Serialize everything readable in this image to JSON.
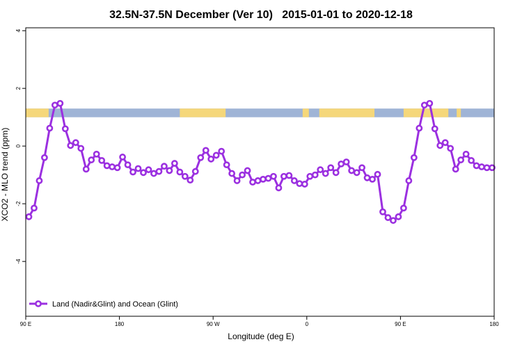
{
  "chart_data": {
    "type": "line",
    "title": "32.5N-37.5N December (Ver 10)   2015-01-01 to 2020-12-18",
    "xlabel": "Longitude (deg E)",
    "ylabel": "XCO2 - MLO trend (ppm)",
    "xlim": [
      90,
      540
    ],
    "ylim": [
      -5.9,
      4.1
    ],
    "x_ticks": [
      {
        "value": 90,
        "label": "90 E"
      },
      {
        "value": 180,
        "label": "180"
      },
      {
        "value": 270,
        "label": "90 W"
      },
      {
        "value": 360,
        "label": "0"
      },
      {
        "value": 450,
        "label": "90 E"
      },
      {
        "value": 540,
        "label": "180"
      }
    ],
    "y_ticks": [
      {
        "value": 4,
        "label": "4"
      },
      {
        "value": 2,
        "label": "2"
      },
      {
        "value": 0,
        "label": "0"
      },
      {
        "value": -2,
        "label": "-2"
      },
      {
        "value": -4,
        "label": "-4"
      }
    ],
    "legend": {
      "position": "bottom-left"
    },
    "land_ocean_band": {
      "y_range": [
        1.0,
        1.3
      ],
      "ocean_color": "#9fb4d6",
      "land_color": "#f5d77a",
      "land_segments": [
        [
          90,
          112
        ],
        [
          238,
          282
        ],
        [
          356,
          362
        ],
        [
          372,
          425
        ],
        [
          453,
          496
        ],
        [
          504,
          508
        ]
      ]
    },
    "series": [
      {
        "name": "Land (Nadir&Glint) and Ocean (Glint)",
        "color": "#9b30e0",
        "x": [
          93,
          98,
          103,
          108,
          113,
          118,
          123,
          128,
          133,
          138,
          143,
          148,
          153,
          158,
          163,
          168,
          173,
          178,
          183,
          188,
          193,
          198,
          203,
          208,
          213,
          218,
          223,
          228,
          233,
          238,
          243,
          248,
          253,
          258,
          263,
          268,
          273,
          278,
          283,
          288,
          293,
          298,
          303,
          308,
          313,
          318,
          323,
          328,
          333,
          338,
          343,
          348,
          353,
          358,
          363,
          368,
          373,
          378,
          383,
          388,
          393,
          398,
          403,
          408,
          413,
          418,
          423,
          428,
          433,
          438,
          443,
          448,
          453,
          458,
          463,
          468,
          473,
          478,
          483,
          488,
          493,
          498,
          503,
          508,
          513,
          518,
          523,
          528,
          533,
          538
        ],
        "y": [
          -2.45,
          -2.15,
          -1.2,
          -0.4,
          0.62,
          1.42,
          1.48,
          0.6,
          0.02,
          0.12,
          -0.08,
          -0.8,
          -0.48,
          -0.28,
          -0.5,
          -0.68,
          -0.72,
          -0.75,
          -0.38,
          -0.65,
          -0.9,
          -0.78,
          -0.92,
          -0.82,
          -0.95,
          -0.88,
          -0.7,
          -0.85,
          -0.6,
          -0.9,
          -1.05,
          -1.18,
          -0.88,
          -0.4,
          -0.15,
          -0.45,
          -0.32,
          -0.18,
          -0.65,
          -0.95,
          -1.2,
          -1.0,
          -0.85,
          -1.25,
          -1.2,
          -1.15,
          -1.12,
          -1.05,
          -1.45,
          -1.05,
          -1.02,
          -1.2,
          -1.3,
          -1.32,
          -1.05,
          -1.0,
          -0.82,
          -0.95,
          -0.75,
          -0.92,
          -0.62,
          -0.55,
          -0.85,
          -0.92,
          -0.75,
          -1.1,
          -1.15,
          -0.98,
          -2.28,
          -2.48,
          -2.58,
          -2.45,
          -2.15,
          -1.2,
          -0.4,
          0.62,
          1.42,
          1.48,
          0.6,
          0.02,
          0.12,
          -0.08,
          -0.8,
          -0.48,
          -0.28,
          -0.5,
          -0.68,
          -0.72,
          -0.75,
          -0.75
        ]
      }
    ]
  }
}
